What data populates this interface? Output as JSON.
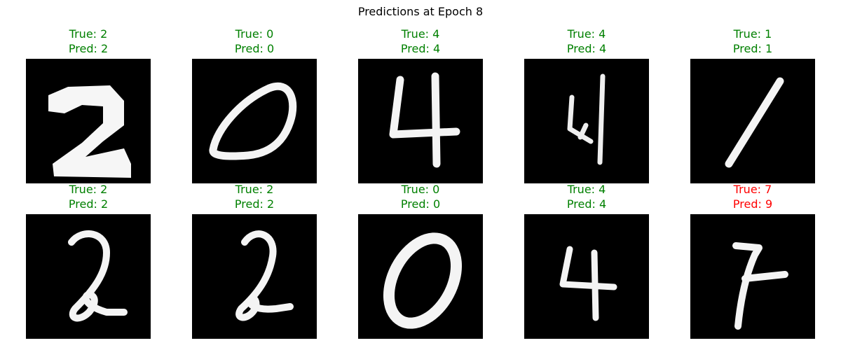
{
  "title": "Predictions at Epoch 8",
  "colors": {
    "correct": "#008000",
    "wrong": "#ff0000",
    "stroke": "#f4f4f4"
  },
  "samples": [
    {
      "true_label": "True: 2",
      "pred_label": "Pred: 2",
      "correct": true,
      "digit_icon": "digit-2-thick-icon"
    },
    {
      "true_label": "True: 0",
      "pred_label": "Pred: 0",
      "correct": true,
      "digit_icon": "digit-0-slanted-icon"
    },
    {
      "true_label": "True: 4",
      "pred_label": "Pred: 4",
      "correct": true,
      "digit_icon": "digit-4-icon"
    },
    {
      "true_label": "True: 4",
      "pred_label": "Pred: 4",
      "correct": true,
      "digit_icon": "digit-4-thin-icon"
    },
    {
      "true_label": "True: 1",
      "pred_label": "Pred: 1",
      "correct": true,
      "digit_icon": "digit-1-slanted-icon"
    },
    {
      "true_label": "True: 2",
      "pred_label": "Pred: 2",
      "correct": true,
      "digit_icon": "digit-2-loop-icon"
    },
    {
      "true_label": "True: 2",
      "pred_label": "Pred: 2",
      "correct": true,
      "digit_icon": "digit-2-loop-icon"
    },
    {
      "true_label": "True: 0",
      "pred_label": "Pred: 0",
      "correct": true,
      "digit_icon": "digit-0-icon"
    },
    {
      "true_label": "True: 4",
      "pred_label": "Pred: 4",
      "correct": true,
      "digit_icon": "digit-4-icon"
    },
    {
      "true_label": "True: 7",
      "pred_label": "Pred: 9",
      "correct": false,
      "digit_icon": "digit-7-icon"
    }
  ]
}
